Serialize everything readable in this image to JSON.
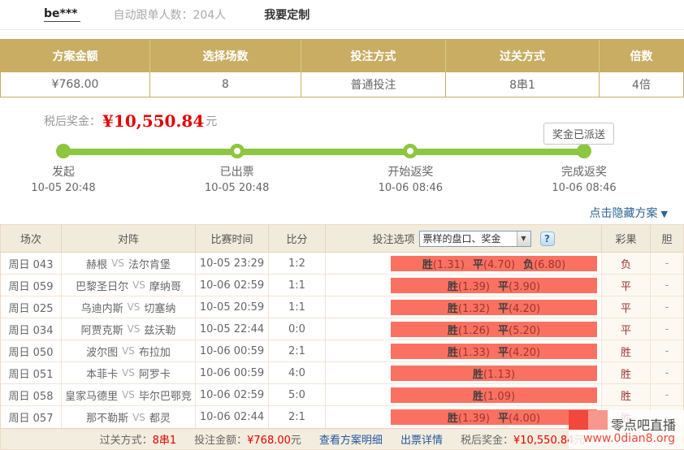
{
  "top_bar": {
    "username": "be***",
    "follow_info": "自动跟单人数：204人",
    "customize": "我要定制"
  },
  "summary_table": {
    "headers": [
      "方案金额",
      "选择场数",
      "投注方式",
      "过关方式",
      "倍数"
    ],
    "values": [
      "¥768.00",
      "8",
      "普通投注",
      "8串1",
      "4倍"
    ]
  },
  "prize": {
    "label": "税后奖金：",
    "amount": "¥10,550.84",
    "unit": "元"
  },
  "badge": "奖金已派送",
  "timeline": {
    "steps": [
      {
        "label": "发起",
        "time": "10-05 20:48",
        "filled": true
      },
      {
        "label": "已出票",
        "time": "10-05 20:48",
        "filled": false
      },
      {
        "label": "开始返奖",
        "time": "10-06 08:46",
        "filled": false
      },
      {
        "label": "完成返奖",
        "time": "10-06 08:46",
        "filled": true
      }
    ]
  },
  "hide_link": {
    "text": "点击隐藏方案",
    "arrow": "▼"
  },
  "icons": {
    "dropdown_arrow": "▼"
  },
  "match_table": {
    "headers": {
      "session": "场次",
      "match": "对阵",
      "time": "比赛时间",
      "score": "比分",
      "bet_option": "投注选项",
      "result": "彩果",
      "dan": "胆"
    },
    "option_select": {
      "value": "票样的盘口、奖金"
    },
    "help_label": "?",
    "vs_label": "VS",
    "rows": [
      {
        "session": "周日 043",
        "home": "赫根",
        "away": "法尔肯堡",
        "time": "10-05 23:29",
        "score": "1:2",
        "options": [
          {
            "label": "胜",
            "odds": "(1.31)"
          },
          {
            "label": "平",
            "odds": "(4.70)"
          },
          {
            "label": "负",
            "odds": "(6.80)"
          }
        ],
        "result": "负",
        "dan": "-"
      },
      {
        "session": "周日 059",
        "home": "巴黎圣日尔",
        "away": "摩纳哥",
        "time": "10-06 02:59",
        "score": "1:1",
        "options": [
          {
            "label": "胜",
            "odds": "(1.39)"
          },
          {
            "label": "平",
            "odds": "(3.90)"
          }
        ],
        "result": "平",
        "dan": "-"
      },
      {
        "session": "周日 025",
        "home": "乌迪内斯",
        "away": "切塞纳",
        "time": "10-05 20:59",
        "score": "1:1",
        "options": [
          {
            "label": "胜",
            "odds": "(1.32)"
          },
          {
            "label": "平",
            "odds": "(4.20)"
          }
        ],
        "result": "平",
        "dan": "-"
      },
      {
        "session": "周日 034",
        "home": "阿贾克斯",
        "away": "兹沃勒",
        "time": "10-05 22:44",
        "score": "0:0",
        "options": [
          {
            "label": "胜",
            "odds": "(1.26)"
          },
          {
            "label": "平",
            "odds": "(5.20)"
          }
        ],
        "result": "平",
        "dan": "-"
      },
      {
        "session": "周日 050",
        "home": "波尔图",
        "away": "布拉加",
        "time": "10-06 00:59",
        "score": "2:1",
        "options": [
          {
            "label": "胜",
            "odds": "(1.33)"
          },
          {
            "label": "平",
            "odds": "(4.20)"
          }
        ],
        "result": "胜",
        "dan": "-"
      },
      {
        "session": "周日 051",
        "home": "本菲卡",
        "away": "阿罗卡",
        "time": "10-06 00:59",
        "score": "4:0",
        "options": [
          {
            "label": "胜",
            "odds": "(1.13)"
          }
        ],
        "result": "胜",
        "dan": "-"
      },
      {
        "session": "周日 058",
        "home": "皇家马德里",
        "away": "毕尔巴鄂竞",
        "time": "10-06 02:59",
        "score": "5:0",
        "options": [
          {
            "label": "胜",
            "odds": "(1.09)"
          }
        ],
        "result": "胜",
        "dan": "-"
      },
      {
        "session": "周日 057",
        "home": "那不勒斯",
        "away": "都灵",
        "time": "10-06 02:44",
        "score": "2:1",
        "options": [
          {
            "label": "胜",
            "odds": "(1.39)"
          },
          {
            "label": "平",
            "odds": "(4.00)"
          }
        ],
        "result": "胜",
        "dan": "-"
      }
    ]
  },
  "footer": {
    "pass_label": "过关方式：",
    "pass_value": "8串1",
    "amount_label": "投注金额：",
    "amount_value": "¥768.00",
    "amount_unit": "元",
    "detail_link": "查看方案明细",
    "ticket_link": "出票详情",
    "prize_label": "税后奖金：",
    "prize_value": "¥10,550.84",
    "prize_unit": "元"
  },
  "watermark": {
    "title": "零点吧直播",
    "url": "www.0dian8.org"
  },
  "colors": {
    "gold_header": "#C8AD62",
    "timeline_green": "#8DC63F",
    "option_red": "#FB7161",
    "money_red": "#E50000",
    "link_blue": "#2456A3",
    "result_red": "#A03333",
    "table_border": "#EFD8C2",
    "beige_header": "#F1EBDC"
  }
}
